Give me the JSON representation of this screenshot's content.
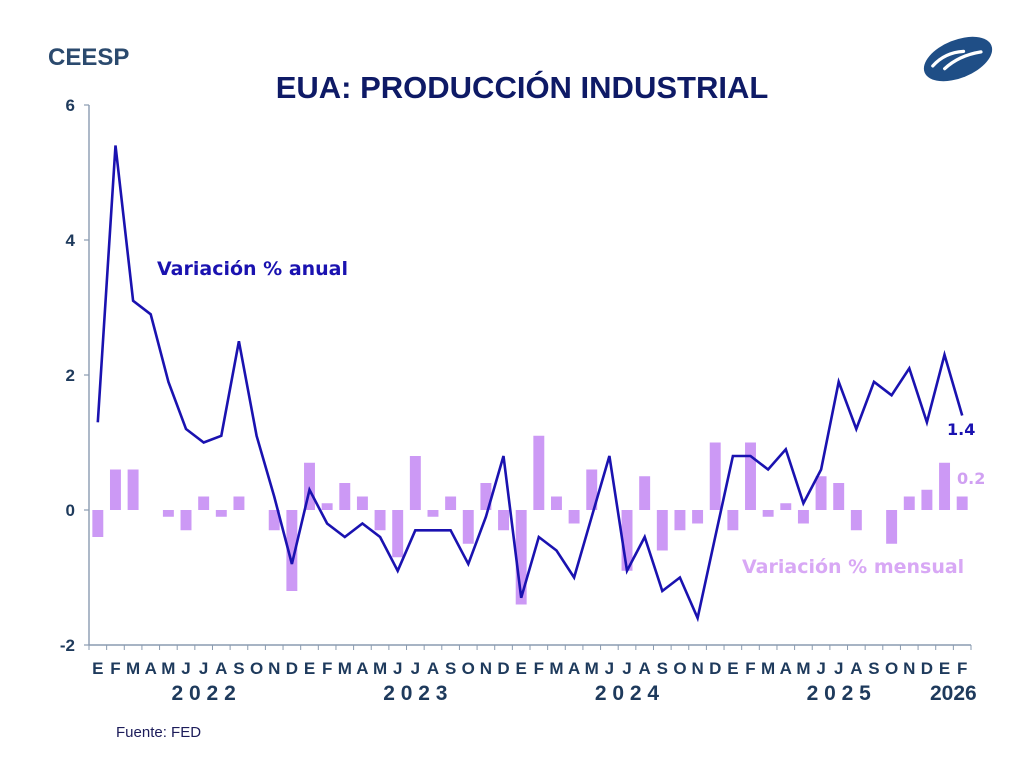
{
  "header": {
    "brand": "CEESP",
    "logo_icon": "ceesp-logo-icon",
    "title": "EUA: PRODUCCIÓN INDUSTRIAL"
  },
  "footer": {
    "source": "Fuente: FED"
  },
  "colors": {
    "annual_line": "#1a12b0",
    "monthly_bars": "#cc99f5",
    "axis": "#8a9bb0",
    "text": "#1e3a5c",
    "brand": "#2b4a6e",
    "title": "#0e1a66"
  },
  "chart_data": {
    "type": "bar+line",
    "title": "EUA: PRODUCCIÓN INDUSTRIAL",
    "xlabel": "",
    "ylabel": "",
    "ylim": [
      -2,
      6
    ],
    "yticks": [
      6,
      4,
      2,
      0,
      -2
    ],
    "grid": false,
    "month_labels": [
      "E",
      "F",
      "M",
      "A",
      "M",
      "J",
      "J",
      "A",
      "S",
      "O",
      "N",
      "D",
      "E",
      "F",
      "M",
      "A",
      "M",
      "J",
      "J",
      "A",
      "S",
      "O",
      "N",
      "D",
      "E",
      "F",
      "M",
      "A",
      "M",
      "J",
      "J",
      "A",
      "S",
      "O",
      "N",
      "D",
      "E",
      "F",
      "M",
      "A",
      "M",
      "J",
      "J",
      "A",
      "S",
      "O",
      "N",
      "D",
      "E",
      "F"
    ],
    "year_labels": [
      {
        "label": "2 0 2 2",
        "center_index": 6
      },
      {
        "label": "2 0 2 3",
        "center_index": 18
      },
      {
        "label": "2 0 2 4",
        "center_index": 30
      },
      {
        "label": "2 0 2 5",
        "center_index": 42
      },
      {
        "label": "2026",
        "center_index": 48.5
      }
    ],
    "series": [
      {
        "name": "Variación % anual",
        "type": "line",
        "values": [
          1.3,
          5.4,
          3.1,
          2.9,
          1.9,
          1.2,
          1.0,
          1.1,
          2.5,
          1.1,
          0.2,
          -0.8,
          0.3,
          -0.2,
          -0.4,
          -0.2,
          -0.4,
          -0.9,
          -0.3,
          -0.3,
          -0.3,
          -0.8,
          -0.1,
          0.8,
          -1.3,
          -0.4,
          -0.6,
          -1.0,
          -0.1,
          0.8,
          -0.9,
          -0.4,
          -1.2,
          -1.0,
          -1.6,
          -0.4,
          0.8,
          0.8,
          0.6,
          0.9,
          0.1,
          0.6,
          1.9,
          1.2,
          1.9,
          1.7,
          2.1,
          1.3,
          2.3,
          1.4
        ],
        "last_value_label": "1.4"
      },
      {
        "name": "Variación % mensual",
        "type": "bar",
        "values": [
          -0.4,
          0.6,
          0.6,
          0.0,
          -0.1,
          -0.3,
          0.2,
          -0.1,
          0.2,
          0.0,
          -0.3,
          -1.2,
          0.7,
          0.1,
          0.4,
          0.2,
          -0.3,
          -0.7,
          0.8,
          -0.1,
          0.2,
          -0.5,
          0.4,
          -0.3,
          -1.4,
          1.1,
          0.2,
          -0.2,
          0.6,
          0.0,
          -0.9,
          0.5,
          -0.6,
          -0.3,
          -0.2,
          1.0,
          -0.3,
          1.0,
          -0.1,
          0.1,
          -0.2,
          0.5,
          0.4,
          -0.3,
          0.0,
          -0.5,
          0.2,
          0.3,
          0.7,
          0.2
        ],
        "last_value_label": "0.2"
      }
    ],
    "annotations": [
      {
        "text": "Variación % anual",
        "series": "annual"
      },
      {
        "text": "Variación % mensual",
        "series": "monthly"
      }
    ]
  }
}
